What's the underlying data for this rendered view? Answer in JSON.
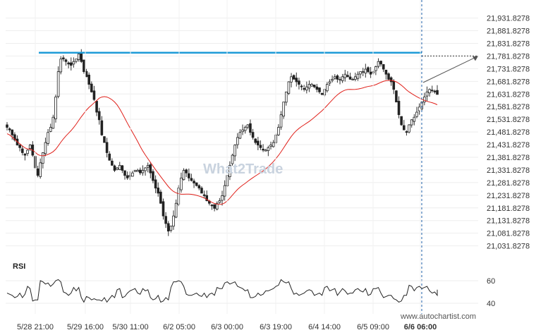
{
  "chart_data": {
    "type": "candlestick",
    "y_ticks": [
      "21,931.8278",
      "21,881.8278",
      "21,831.8278",
      "21,781.8278",
      "21,731.8278",
      "21,681.8278",
      "21,631.8278",
      "21,581.8278",
      "21,531.8278",
      "21,481.8278",
      "21,431.8278",
      "21,381.8278",
      "21,331.8278",
      "21,281.8278",
      "21,231.8278",
      "21,181.8278",
      "21,131.8278",
      "21,081.8278",
      "21,031.8278"
    ],
    "ylim": [
      21010,
      21945
    ],
    "x_ticks": [
      "5/28 21:00",
      "5/29 16:00",
      "5/30 11:00",
      "6/2 05:00",
      "6/3 00:00",
      "6/3 19:00",
      "6/4 14:00",
      "6/5 09:00",
      "6/6 06:00"
    ],
    "resistance_level": 21795,
    "projection_target": 21781.8278,
    "rsi": {
      "label": "RSI",
      "levels": [
        60,
        40
      ],
      "ylim": [
        37,
        65
      ]
    },
    "closes": [
      21500,
      21490,
      21470,
      21450,
      21430,
      21420,
      21400,
      21390,
      21410,
      21430,
      21390,
      21340,
      21310,
      21360,
      21400,
      21440,
      21480,
      21500,
      21540,
      21620,
      21720,
      21770,
      21770,
      21760,
      21750,
      21745,
      21760,
      21770,
      21790,
      21760,
      21720,
      21700,
      21670,
      21640,
      21610,
      21560,
      21530,
      21470,
      21440,
      21400,
      21370,
      21350,
      21330,
      21340,
      21350,
      21330,
      21310,
      21300,
      21310,
      21320,
      21330,
      21330,
      21320,
      21330,
      21340,
      21350,
      21320,
      21290,
      21260,
      21240,
      21200,
      21150,
      21120,
      21090,
      21110,
      21150,
      21200,
      21260,
      21300,
      21330,
      21320,
      21300,
      21290,
      21280,
      21270,
      21260,
      21240,
      21230,
      21210,
      21200,
      21190,
      21180,
      21200,
      21210,
      21230,
      21270,
      21310,
      21350,
      21390,
      21430,
      21460,
      21480,
      21490,
      21500,
      21510,
      21480,
      21460,
      21440,
      21430,
      21420,
      21410,
      21410,
      21420,
      21430,
      21440,
      21470,
      21500,
      21550,
      21600,
      21640,
      21680,
      21700,
      21690,
      21680,
      21670,
      21660,
      21650,
      21660,
      21670,
      21670,
      21660,
      21650,
      21640,
      21630,
      21650,
      21670,
      21680,
      21690,
      21700,
      21690,
      21690,
      21700,
      21710,
      21700,
      21690,
      21690,
      21700,
      21710,
      21720,
      21720,
      21730,
      21720,
      21710,
      21720,
      21740,
      21760,
      21750,
      21730,
      21710,
      21690,
      21680,
      21650,
      21600,
      21550,
      21510,
      21490,
      21480,
      21510,
      21530,
      21540,
      21560,
      21580,
      21600,
      21620,
      21640,
      21650,
      21645,
      21640,
      21630
    ]
  },
  "watermark": "www.autochartist.com",
  "brand": "What2Trade"
}
